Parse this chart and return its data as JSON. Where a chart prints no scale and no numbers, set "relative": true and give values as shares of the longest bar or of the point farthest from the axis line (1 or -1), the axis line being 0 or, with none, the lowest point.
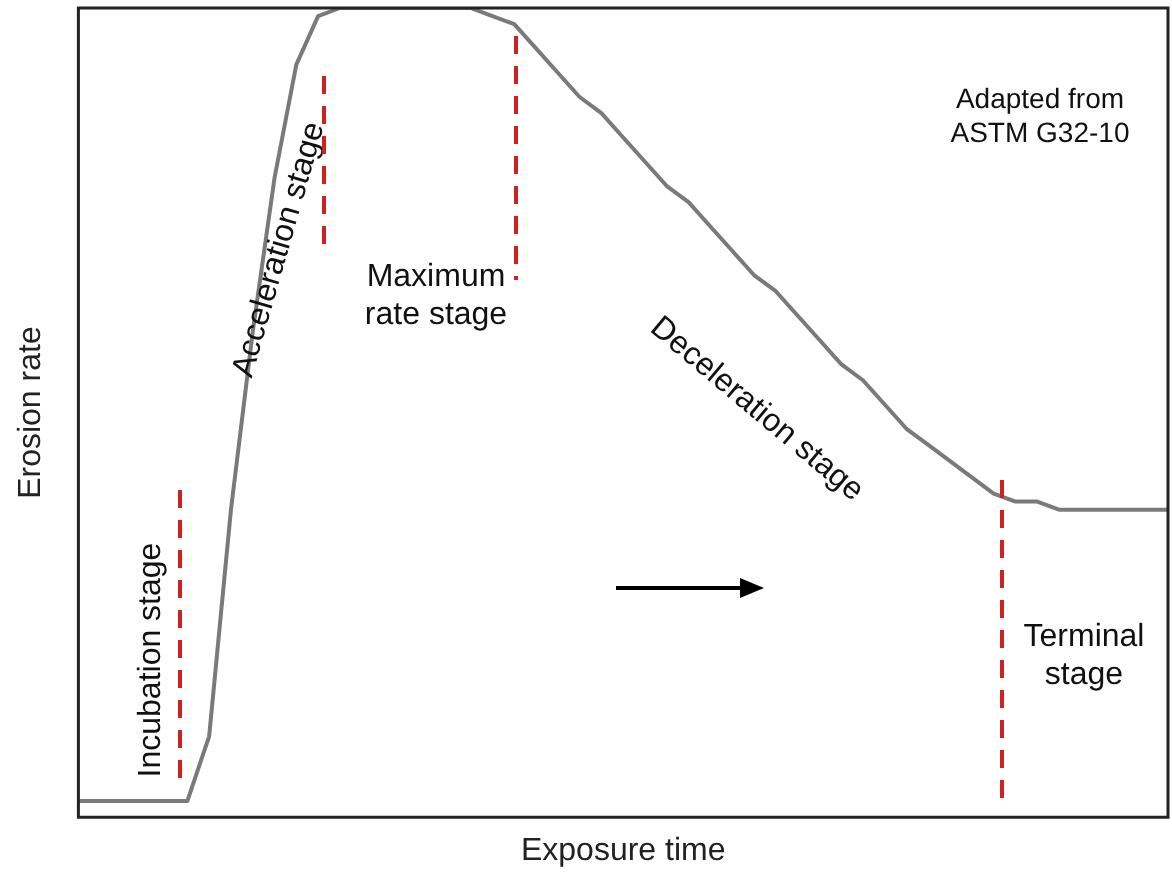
{
  "chart_data": {
    "type": "line",
    "relative": true,
    "xlabel": "Exposure time",
    "ylabel": "Erosion rate",
    "grid": false,
    "legend": false,
    "marker": "none",
    "line_style": "solid",
    "categories": [
      null,
      null,
      null,
      null,
      null,
      null,
      null,
      null,
      null,
      null,
      null,
      null,
      null,
      null,
      null,
      null,
      null,
      null,
      null,
      null,
      null,
      null,
      null,
      null,
      null,
      null,
      null,
      null,
      null,
      null,
      null,
      null,
      null,
      null,
      null,
      null,
      null,
      null,
      null,
      null,
      null,
      null,
      null,
      null,
      null,
      null,
      null,
      null,
      null,
      null,
      null
    ],
    "series": [
      {
        "color": "#7a7a7a",
        "values": [
          0.02,
          0.02,
          0.02,
          0.02,
          0.02,
          0.02,
          0.1,
          0.38,
          0.6,
          0.79,
          0.93,
          0.99,
          1,
          1,
          1,
          1,
          1,
          1,
          1,
          0.99,
          0.98,
          0.95,
          0.92,
          0.89,
          0.87,
          0.84,
          0.81,
          0.78,
          0.76,
          0.73,
          0.7,
          0.67,
          0.65,
          0.62,
          0.59,
          0.56,
          0.54,
          0.51,
          0.48,
          0.46,
          0.44,
          0.42,
          0.4,
          0.39,
          0.39,
          0.38,
          0.38,
          0.38,
          0.38,
          0.38,
          0.38
        ]
      }
    ],
    "annotations": [
      "Incubation stage",
      "Acceleration stage",
      "Maximum rate stage",
      "Deceleration stage",
      "Terminal stage",
      "Adapted from ASTM G32-10"
    ]
  }
}
